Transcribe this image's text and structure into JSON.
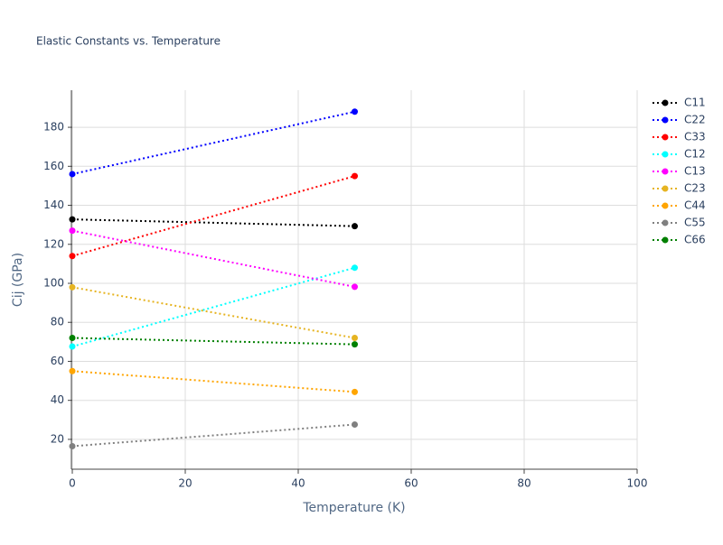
{
  "chart_data": {
    "type": "line",
    "title": "Elastic Constants vs. Temperature",
    "x_label": "Temperature (K)",
    "y_label": "Cij (GPa)",
    "x": [
      0,
      50
    ],
    "xlim": [
      0,
      100
    ],
    "xticks": [
      0,
      20,
      40,
      60,
      80,
      100
    ],
    "ylim": [
      4.7,
      199
    ],
    "yticks": [
      20,
      40,
      60,
      80,
      100,
      120,
      140,
      160,
      180
    ],
    "grid": true,
    "legend": "right",
    "series": [
      {
        "name": "C11",
        "color": "#000000",
        "values": [
          132.8,
          129.3
        ]
      },
      {
        "name": "C22",
        "color": "#0000ff",
        "values": [
          156,
          188
        ]
      },
      {
        "name": "C33",
        "color": "#ff0000",
        "values": [
          114,
          155
        ]
      },
      {
        "name": "C12",
        "color": "#00ffff",
        "values": [
          67.6,
          108
        ]
      },
      {
        "name": "C13",
        "color": "#ff00ff",
        "values": [
          127,
          98.2
        ]
      },
      {
        "name": "C23",
        "color": "#e6b422",
        "values": [
          98,
          72
        ]
      },
      {
        "name": "C44",
        "color": "#ffa500",
        "values": [
          55,
          44.3
        ]
      },
      {
        "name": "C55",
        "color": "#808080",
        "values": [
          16.5,
          27.6
        ]
      },
      {
        "name": "C66",
        "color": "#008000",
        "values": [
          72,
          68.7
        ]
      }
    ]
  }
}
